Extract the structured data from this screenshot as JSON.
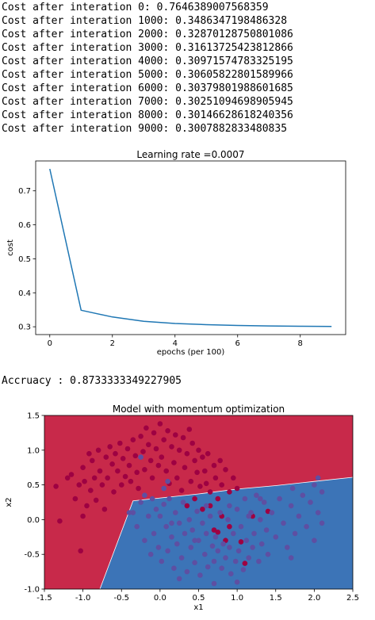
{
  "log_lines": [
    "Cost after interation 0: 0.7646389007568359",
    "Cost after interation 1000: 0.3486347198486328",
    "Cost after interation 2000: 0.32870128750801086",
    "Cost after interation 3000: 0.31613725423812866",
    "Cost after interation 4000: 0.30971574783325195",
    "Cost after interation 5000: 0.30605822801589966",
    "Cost after interation 6000: 0.30379801988601685",
    "Cost after interation 7000: 0.30251094698905945",
    "Cost after interation 8000: 0.30146628618240356",
    "Cost after interation 9000: 0.3007882833480835"
  ],
  "accuracy_line": "Accruacy : 0.8733333349227905",
  "chart_data": [
    {
      "type": "line",
      "title": "Learning rate =0.0007",
      "xlabel": "epochs (per 100)",
      "ylabel": "cost",
      "x": [
        0,
        1,
        2,
        3,
        4,
        5,
        6,
        7,
        8,
        9
      ],
      "series": [
        {
          "values": [
            0.7646389007568359,
            0.3486347198486328,
            0.32870128750801086,
            0.31613725423812866,
            0.30971574783325195,
            0.30605822801589966,
            0.30379801988601685,
            0.30251094698905945,
            0.30146628618240356,
            0.3007882833480835
          ]
        }
      ],
      "xlim": [
        -0.45,
        9.45
      ],
      "ylim": [
        0.277,
        0.788
      ],
      "xticks": [
        "0",
        "2",
        "4",
        "6",
        "8"
      ],
      "yticks": [
        "0.3",
        "0.4",
        "0.5",
        "0.6",
        "0.7"
      ],
      "line_color": "#1f77b4",
      "grid": false
    },
    {
      "type": "scatter",
      "title": "Model with momentum optimization",
      "xlabel": "x1",
      "ylabel": "x2",
      "xlim": [
        -1.5,
        2.5
      ],
      "ylim": [
        -1.0,
        1.5
      ],
      "xticks": [
        "-1.5",
        "-1.0",
        "-0.5",
        "0.0",
        "0.5",
        "1.0",
        "1.5",
        "2.0",
        "2.5"
      ],
      "yticks": [
        "-1.0",
        "-0.5",
        "0.0",
        "0.5",
        "1.0",
        "1.5"
      ],
      "grid": false,
      "regions": [
        {
          "class": 0,
          "color": "#c8294a"
        },
        {
          "class": 1,
          "color": "#3c74b7"
        }
      ],
      "decision_boundary": [
        [
          -0.78,
          -1.0
        ],
        [
          -0.35,
          0.27
        ],
        [
          0.5,
          0.37
        ],
        [
          1.0,
          0.44
        ],
        [
          1.5,
          0.49
        ],
        [
          2.0,
          0.55
        ],
        [
          2.5,
          0.61
        ]
      ],
      "point_colors": {
        "0": "#9e0142",
        "1": "#5e4fa2"
      },
      "points": [
        [
          -1.35,
          0.48,
          0
        ],
        [
          -1.3,
          -0.02,
          0
        ],
        [
          -1.2,
          0.6,
          0
        ],
        [
          -1.15,
          0.65,
          0
        ],
        [
          -1.1,
          0.3,
          0
        ],
        [
          -1.05,
          0.5,
          0
        ],
        [
          -1.03,
          -0.45,
          0
        ],
        [
          -1.0,
          0.75,
          0
        ],
        [
          -1.0,
          0.05,
          0
        ],
        [
          -0.98,
          0.55,
          0
        ],
        [
          -0.95,
          0.2,
          0
        ],
        [
          -0.92,
          0.95,
          0
        ],
        [
          -0.9,
          0.42,
          0
        ],
        [
          -0.88,
          0.85,
          0
        ],
        [
          -0.85,
          0.6,
          0
        ],
        [
          -0.83,
          0.28,
          0
        ],
        [
          -0.8,
          1.0,
          0
        ],
        [
          -0.78,
          0.7,
          0
        ],
        [
          -0.75,
          0.5,
          0
        ],
        [
          -0.72,
          0.15,
          0
        ],
        [
          -0.7,
          0.9,
          0
        ],
        [
          -0.68,
          0.6,
          0
        ],
        [
          -0.65,
          1.05,
          0
        ],
        [
          -0.62,
          0.8,
          0
        ],
        [
          -0.6,
          0.4,
          0
        ],
        [
          -0.58,
          0.95,
          0
        ],
        [
          -0.55,
          0.7,
          0
        ],
        [
          -0.52,
          1.1,
          0
        ],
        [
          -0.5,
          0.5,
          0
        ],
        [
          -0.48,
          0.88,
          0
        ],
        [
          -0.45,
          0.62,
          0
        ],
        [
          -0.42,
          1.02,
          0
        ],
        [
          -0.4,
          0.78,
          0
        ],
        [
          -0.38,
          0.55,
          0
        ],
        [
          -0.35,
          1.15,
          0
        ],
        [
          -0.32,
          0.92,
          0
        ],
        [
          -0.3,
          0.68,
          0
        ],
        [
          -0.28,
          0.45,
          0
        ],
        [
          -0.25,
          1.2,
          0
        ],
        [
          -0.22,
          0.98,
          0
        ],
        [
          -0.2,
          0.72,
          0
        ],
        [
          -0.18,
          1.32,
          0
        ],
        [
          -0.15,
          1.08,
          0
        ],
        [
          -0.12,
          0.85,
          0
        ],
        [
          -0.1,
          0.6,
          0
        ],
        [
          -0.08,
          1.25,
          0
        ],
        [
          -0.05,
          1.02,
          0
        ],
        [
          -0.02,
          0.78,
          0
        ],
        [
          0.0,
          1.38,
          0
        ],
        [
          0.02,
          0.9,
          0
        ],
        [
          0.05,
          1.15,
          0
        ],
        [
          0.08,
          0.7,
          0
        ],
        [
          0.1,
          1.28,
          0
        ],
        [
          0.12,
          0.52,
          0
        ],
        [
          0.15,
          1.05,
          0
        ],
        [
          0.18,
          0.82,
          0
        ],
        [
          0.2,
          1.22,
          0
        ],
        [
          0.22,
          0.6,
          0
        ],
        [
          0.25,
          1.0,
          0
        ],
        [
          0.28,
          0.42,
          0
        ],
        [
          0.3,
          1.18,
          0
        ],
        [
          0.32,
          0.75,
          0
        ],
        [
          0.35,
          0.95,
          0
        ],
        [
          0.38,
          1.3,
          0
        ],
        [
          0.4,
          0.55,
          0
        ],
        [
          0.42,
          1.1,
          0
        ],
        [
          0.45,
          0.85,
          0
        ],
        [
          0.48,
          0.68,
          0
        ],
        [
          0.5,
          1.0,
          0
        ],
        [
          0.52,
          0.48,
          0
        ],
        [
          0.55,
          0.9,
          0
        ],
        [
          0.58,
          0.7,
          0
        ],
        [
          0.6,
          0.52,
          0
        ],
        [
          0.62,
          0.95,
          0
        ],
        [
          0.65,
          0.4,
          0
        ],
        [
          0.7,
          0.78,
          0
        ],
        [
          0.72,
          0.6,
          0
        ],
        [
          0.75,
          0.3,
          0
        ],
        [
          0.78,
          0.85,
          0
        ],
        [
          0.8,
          0.5,
          0
        ],
        [
          0.85,
          0.72,
          0
        ],
        [
          0.9,
          0.4,
          0
        ],
        [
          0.95,
          0.6,
          0
        ],
        [
          1.0,
          0.45,
          0
        ],
        [
          0.55,
          0.15,
          0
        ],
        [
          0.65,
          0.2,
          0
        ],
        [
          0.7,
          -0.15,
          0
        ],
        [
          0.8,
          0.05,
          0
        ],
        [
          0.85,
          -0.3,
          0
        ],
        [
          0.9,
          -0.1,
          0
        ],
        [
          1.05,
          -0.32,
          0
        ],
        [
          1.1,
          -0.63,
          0
        ],
        [
          1.2,
          0.05,
          0
        ],
        [
          1.4,
          0.12,
          0
        ],
        [
          0.75,
          -0.18,
          0
        ],
        [
          0.45,
          0.3,
          0
        ],
        [
          0.35,
          0.2,
          0
        ],
        [
          -0.35,
          0.1,
          1
        ],
        [
          -0.3,
          -0.1,
          1
        ],
        [
          -0.25,
          0.25,
          1
        ],
        [
          -0.2,
          -0.3,
          1
        ],
        [
          -0.15,
          0.05,
          1
        ],
        [
          -0.12,
          -0.5,
          1
        ],
        [
          -0.1,
          0.3,
          1
        ],
        [
          -0.08,
          -0.2,
          1
        ],
        [
          -0.05,
          0.15,
          1
        ],
        [
          -0.02,
          -0.4,
          1
        ],
        [
          0.0,
          0.05,
          1
        ],
        [
          0.02,
          -0.6,
          1
        ],
        [
          0.05,
          0.22,
          1
        ],
        [
          0.08,
          -0.1,
          1
        ],
        [
          0.1,
          -0.45,
          1
        ],
        [
          0.12,
          0.3,
          1
        ],
        [
          0.15,
          -0.25,
          1
        ],
        [
          0.18,
          -0.7,
          1
        ],
        [
          0.2,
          0.1,
          1
        ],
        [
          0.22,
          -0.35,
          1
        ],
        [
          0.25,
          -0.05,
          1
        ],
        [
          0.28,
          -0.55,
          1
        ],
        [
          0.3,
          0.25,
          1
        ],
        [
          0.32,
          -0.2,
          1
        ],
        [
          0.35,
          -0.75,
          1
        ],
        [
          0.38,
          0.0,
          1
        ],
        [
          0.4,
          -0.4,
          1
        ],
        [
          0.42,
          -0.15,
          1
        ],
        [
          0.45,
          -0.62,
          1
        ],
        [
          0.48,
          0.12,
          1
        ],
        [
          0.5,
          -0.3,
          1
        ],
        [
          0.52,
          -0.8,
          1
        ],
        [
          0.55,
          -0.05,
          1
        ],
        [
          0.58,
          -0.5,
          1
        ],
        [
          0.6,
          -0.2,
          1
        ],
        [
          0.62,
          -0.68,
          1
        ],
        [
          0.65,
          0.05,
          1
        ],
        [
          0.68,
          -0.38,
          1
        ],
        [
          0.7,
          -0.6,
          1
        ],
        [
          0.72,
          -0.25,
          1
        ],
        [
          0.75,
          -0.45,
          1
        ],
        [
          0.78,
          0.1,
          1
        ],
        [
          0.8,
          -0.7,
          1
        ],
        [
          0.82,
          -0.35,
          1
        ],
        [
          0.85,
          -0.55,
          1
        ],
        [
          0.88,
          0.0,
          1
        ],
        [
          0.9,
          -0.4,
          1
        ],
        [
          0.92,
          -0.78,
          1
        ],
        [
          0.95,
          -0.2,
          1
        ],
        [
          0.98,
          -0.6,
          1
        ],
        [
          1.0,
          0.15,
          1
        ],
        [
          1.02,
          -0.45,
          1
        ],
        [
          1.05,
          -0.1,
          1
        ],
        [
          1.08,
          -0.72,
          1
        ],
        [
          1.1,
          0.3,
          1
        ],
        [
          1.12,
          -0.3,
          1
        ],
        [
          1.15,
          -0.55,
          1
        ],
        [
          1.18,
          0.1,
          1
        ],
        [
          1.2,
          -0.4,
          1
        ],
        [
          1.22,
          -0.2,
          1
        ],
        [
          1.25,
          0.35,
          1
        ],
        [
          1.28,
          -0.6,
          1
        ],
        [
          1.3,
          0.0,
          1
        ],
        [
          1.32,
          -0.35,
          1
        ],
        [
          1.35,
          0.25,
          1
        ],
        [
          1.38,
          -0.15,
          1
        ],
        [
          1.4,
          -0.5,
          1
        ],
        [
          1.45,
          0.1,
          1
        ],
        [
          1.5,
          -0.25,
          1
        ],
        [
          1.55,
          0.3,
          1
        ],
        [
          1.6,
          -0.05,
          1
        ],
        [
          1.65,
          -0.4,
          1
        ],
        [
          1.7,
          0.2,
          1
        ],
        [
          1.72,
          0.45,
          1
        ],
        [
          1.75,
          -0.2,
          1
        ],
        [
          1.8,
          0.05,
          1
        ],
        [
          1.85,
          0.35,
          1
        ],
        [
          1.9,
          -0.1,
          1
        ],
        [
          1.95,
          0.25,
          1
        ],
        [
          2.0,
          0.5,
          1
        ],
        [
          2.05,
          0.1,
          1
        ],
        [
          2.1,
          0.4,
          1
        ],
        [
          2.1,
          -0.05,
          1
        ],
        [
          2.05,
          0.6,
          1
        ],
        [
          2.0,
          -0.3,
          1
        ],
        [
          1.0,
          -0.9,
          1
        ],
        [
          0.7,
          -0.92,
          1
        ],
        [
          -0.2,
          0.35,
          1
        ],
        [
          0.05,
          0.45,
          1
        ],
        [
          -0.25,
          0.9,
          1
        ],
        [
          0.1,
          0.55,
          1
        ],
        [
          -0.4,
          0.1,
          1
        ],
        [
          0.15,
          -0.05,
          1
        ],
        [
          0.6,
          0.2,
          1
        ],
        [
          0.9,
          0.2,
          1
        ],
        [
          1.3,
          0.3,
          1
        ],
        [
          1.7,
          -0.55,
          1
        ],
        [
          0.25,
          -0.85,
          1
        ],
        [
          0.45,
          -0.3,
          1
        ],
        [
          1.15,
          0.05,
          1
        ]
      ]
    }
  ]
}
